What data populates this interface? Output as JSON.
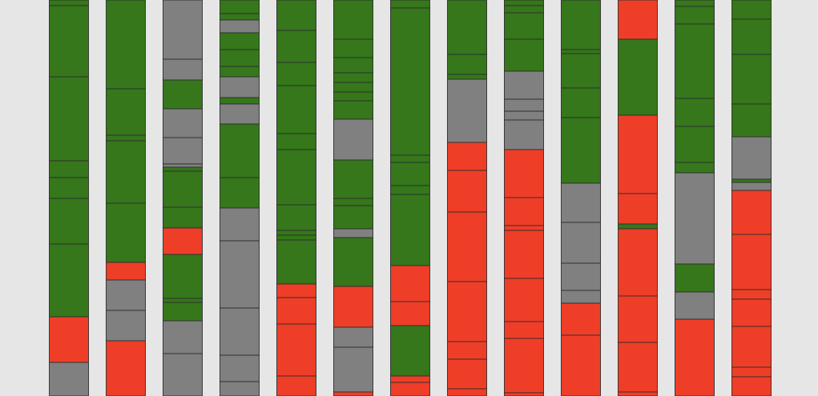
{
  "colors": {
    "background": "#e6e6e6",
    "green": "#35771a",
    "gray": "#808080",
    "red": "#ef3e28",
    "segment_border": "#2d2d2d"
  },
  "chart_data": {
    "type": "bar",
    "orientation": "vertical",
    "stacked": true,
    "axes_visible": false,
    "grid": false,
    "legend": "none",
    "ylim": [
      0,
      495
    ],
    "y_direction": "top-to-bottom",
    "columns": [
      {
        "segments": [
          {
            "start": 0,
            "end": 7,
            "color": "green"
          },
          {
            "start": 7,
            "end": 96,
            "color": "green"
          },
          {
            "start": 96,
            "end": 201,
            "color": "green"
          },
          {
            "start": 201,
            "end": 222,
            "color": "green"
          },
          {
            "start": 222,
            "end": 248,
            "color": "green"
          },
          {
            "start": 248,
            "end": 305,
            "color": "green"
          },
          {
            "start": 305,
            "end": 396,
            "color": "green"
          },
          {
            "start": 396,
            "end": 453,
            "color": "red"
          },
          {
            "start": 453,
            "end": 495,
            "color": "gray"
          }
        ]
      },
      {
        "segments": [
          {
            "start": 0,
            "end": 111,
            "color": "green"
          },
          {
            "start": 111,
            "end": 169,
            "color": "green"
          },
          {
            "start": 169,
            "end": 176,
            "color": "green"
          },
          {
            "start": 176,
            "end": 254,
            "color": "green"
          },
          {
            "start": 254,
            "end": 328,
            "color": "green"
          },
          {
            "start": 328,
            "end": 350,
            "color": "red"
          },
          {
            "start": 350,
            "end": 388,
            "color": "gray"
          },
          {
            "start": 388,
            "end": 426,
            "color": "gray"
          },
          {
            "start": 426,
            "end": 495,
            "color": "red"
          }
        ]
      },
      {
        "segments": [
          {
            "start": 0,
            "end": 74,
            "color": "gray"
          },
          {
            "start": 74,
            "end": 100,
            "color": "gray"
          },
          {
            "start": 100,
            "end": 136,
            "color": "green"
          },
          {
            "start": 136,
            "end": 172,
            "color": "gray"
          },
          {
            "start": 172,
            "end": 205,
            "color": "gray"
          },
          {
            "start": 205,
            "end": 209,
            "color": "gray"
          },
          {
            "start": 209,
            "end": 214,
            "color": "green"
          },
          {
            "start": 214,
            "end": 259,
            "color": "green"
          },
          {
            "start": 259,
            "end": 285,
            "color": "green"
          },
          {
            "start": 285,
            "end": 318,
            "color": "red"
          },
          {
            "start": 318,
            "end": 373,
            "color": "green"
          },
          {
            "start": 373,
            "end": 378,
            "color": "green"
          },
          {
            "start": 378,
            "end": 401,
            "color": "green"
          },
          {
            "start": 401,
            "end": 442,
            "color": "gray"
          },
          {
            "start": 442,
            "end": 495,
            "color": "gray"
          }
        ]
      },
      {
        "segments": [
          {
            "start": 0,
            "end": 17,
            "color": "green"
          },
          {
            "start": 17,
            "end": 25,
            "color": "green"
          },
          {
            "start": 25,
            "end": 41,
            "color": "gray"
          },
          {
            "start": 41,
            "end": 62,
            "color": "green"
          },
          {
            "start": 62,
            "end": 83,
            "color": "green"
          },
          {
            "start": 83,
            "end": 96,
            "color": "green"
          },
          {
            "start": 96,
            "end": 122,
            "color": "gray"
          },
          {
            "start": 122,
            "end": 130,
            "color": "green"
          },
          {
            "start": 130,
            "end": 155,
            "color": "gray"
          },
          {
            "start": 155,
            "end": 222,
            "color": "green"
          },
          {
            "start": 222,
            "end": 260,
            "color": "green"
          },
          {
            "start": 260,
            "end": 301,
            "color": "gray"
          },
          {
            "start": 301,
            "end": 385,
            "color": "gray"
          },
          {
            "start": 385,
            "end": 444,
            "color": "gray"
          },
          {
            "start": 444,
            "end": 477,
            "color": "gray"
          },
          {
            "start": 477,
            "end": 495,
            "color": "gray"
          }
        ]
      },
      {
        "segments": [
          {
            "start": 0,
            "end": 38,
            "color": "green"
          },
          {
            "start": 38,
            "end": 78,
            "color": "green"
          },
          {
            "start": 78,
            "end": 107,
            "color": "green"
          },
          {
            "start": 107,
            "end": 167,
            "color": "green"
          },
          {
            "start": 167,
            "end": 187,
            "color": "green"
          },
          {
            "start": 187,
            "end": 256,
            "color": "green"
          },
          {
            "start": 256,
            "end": 288,
            "color": "green"
          },
          {
            "start": 288,
            "end": 294,
            "color": "green"
          },
          {
            "start": 294,
            "end": 300,
            "color": "green"
          },
          {
            "start": 300,
            "end": 355,
            "color": "green"
          },
          {
            "start": 355,
            "end": 372,
            "color": "red"
          },
          {
            "start": 372,
            "end": 405,
            "color": "red"
          },
          {
            "start": 405,
            "end": 470,
            "color": "red"
          },
          {
            "start": 470,
            "end": 495,
            "color": "red"
          }
        ]
      },
      {
        "segments": [
          {
            "start": 0,
            "end": 49,
            "color": "green"
          },
          {
            "start": 49,
            "end": 72,
            "color": "green"
          },
          {
            "start": 72,
            "end": 91,
            "color": "green"
          },
          {
            "start": 91,
            "end": 103,
            "color": "green"
          },
          {
            "start": 103,
            "end": 115,
            "color": "green"
          },
          {
            "start": 115,
            "end": 126,
            "color": "green"
          },
          {
            "start": 126,
            "end": 149,
            "color": "green"
          },
          {
            "start": 149,
            "end": 200,
            "color": "gray"
          },
          {
            "start": 200,
            "end": 248,
            "color": "green"
          },
          {
            "start": 248,
            "end": 257,
            "color": "green"
          },
          {
            "start": 257,
            "end": 286,
            "color": "green"
          },
          {
            "start": 286,
            "end": 297,
            "color": "gray"
          },
          {
            "start": 297,
            "end": 358,
            "color": "green"
          },
          {
            "start": 358,
            "end": 409,
            "color": "red"
          },
          {
            "start": 409,
            "end": 434,
            "color": "gray"
          },
          {
            "start": 434,
            "end": 490,
            "color": "gray"
          },
          {
            "start": 490,
            "end": 495,
            "color": "red"
          }
        ]
      },
      {
        "segments": [
          {
            "start": 0,
            "end": 10,
            "color": "green"
          },
          {
            "start": 10,
            "end": 194,
            "color": "green"
          },
          {
            "start": 194,
            "end": 203,
            "color": "green"
          },
          {
            "start": 203,
            "end": 232,
            "color": "green"
          },
          {
            "start": 232,
            "end": 243,
            "color": "green"
          },
          {
            "start": 243,
            "end": 332,
            "color": "green"
          },
          {
            "start": 332,
            "end": 377,
            "color": "red"
          },
          {
            "start": 377,
            "end": 407,
            "color": "red"
          },
          {
            "start": 407,
            "end": 470,
            "color": "green"
          },
          {
            "start": 470,
            "end": 478,
            "color": "red"
          },
          {
            "start": 478,
            "end": 495,
            "color": "red"
          }
        ]
      },
      {
        "segments": [
          {
            "start": 0,
            "end": 68,
            "color": "green"
          },
          {
            "start": 68,
            "end": 93,
            "color": "green"
          },
          {
            "start": 93,
            "end": 99,
            "color": "green"
          },
          {
            "start": 99,
            "end": 178,
            "color": "gray"
          },
          {
            "start": 178,
            "end": 213,
            "color": "red"
          },
          {
            "start": 213,
            "end": 265,
            "color": "red"
          },
          {
            "start": 265,
            "end": 352,
            "color": "red"
          },
          {
            "start": 352,
            "end": 427,
            "color": "red"
          },
          {
            "start": 427,
            "end": 449,
            "color": "red"
          },
          {
            "start": 449,
            "end": 486,
            "color": "red"
          },
          {
            "start": 486,
            "end": 495,
            "color": "red"
          }
        ]
      },
      {
        "segments": [
          {
            "start": 0,
            "end": 7,
            "color": "green"
          },
          {
            "start": 7,
            "end": 16,
            "color": "green"
          },
          {
            "start": 16,
            "end": 49,
            "color": "green"
          },
          {
            "start": 49,
            "end": 89,
            "color": "green"
          },
          {
            "start": 89,
            "end": 124,
            "color": "gray"
          },
          {
            "start": 124,
            "end": 139,
            "color": "gray"
          },
          {
            "start": 139,
            "end": 150,
            "color": "gray"
          },
          {
            "start": 150,
            "end": 187,
            "color": "gray"
          },
          {
            "start": 187,
            "end": 247,
            "color": "red"
          },
          {
            "start": 247,
            "end": 282,
            "color": "red"
          },
          {
            "start": 282,
            "end": 288,
            "color": "red"
          },
          {
            "start": 288,
            "end": 348,
            "color": "red"
          },
          {
            "start": 348,
            "end": 402,
            "color": "red"
          },
          {
            "start": 402,
            "end": 423,
            "color": "red"
          },
          {
            "start": 423,
            "end": 491,
            "color": "red"
          },
          {
            "start": 491,
            "end": 495,
            "color": "red"
          }
        ]
      },
      {
        "segments": [
          {
            "start": 0,
            "end": 62,
            "color": "green"
          },
          {
            "start": 62,
            "end": 67,
            "color": "green"
          },
          {
            "start": 67,
            "end": 110,
            "color": "green"
          },
          {
            "start": 110,
            "end": 147,
            "color": "green"
          },
          {
            "start": 147,
            "end": 229,
            "color": "green"
          },
          {
            "start": 229,
            "end": 278,
            "color": "gray"
          },
          {
            "start": 278,
            "end": 329,
            "color": "gray"
          },
          {
            "start": 329,
            "end": 363,
            "color": "gray"
          },
          {
            "start": 363,
            "end": 379,
            "color": "gray"
          },
          {
            "start": 379,
            "end": 419,
            "color": "red"
          },
          {
            "start": 419,
            "end": 495,
            "color": "red"
          }
        ]
      },
      {
        "segments": [
          {
            "start": 0,
            "end": 49,
            "color": "red"
          },
          {
            "start": 49,
            "end": 144,
            "color": "green"
          },
          {
            "start": 144,
            "end": 242,
            "color": "red"
          },
          {
            "start": 242,
            "end": 280,
            "color": "red"
          },
          {
            "start": 280,
            "end": 286,
            "color": "green"
          },
          {
            "start": 286,
            "end": 370,
            "color": "red"
          },
          {
            "start": 370,
            "end": 428,
            "color": "red"
          },
          {
            "start": 428,
            "end": 490,
            "color": "red"
          },
          {
            "start": 490,
            "end": 495,
            "color": "red"
          }
        ]
      },
      {
        "segments": [
          {
            "start": 0,
            "end": 8,
            "color": "green"
          },
          {
            "start": 8,
            "end": 30,
            "color": "green"
          },
          {
            "start": 30,
            "end": 123,
            "color": "green"
          },
          {
            "start": 123,
            "end": 158,
            "color": "green"
          },
          {
            "start": 158,
            "end": 203,
            "color": "green"
          },
          {
            "start": 203,
            "end": 216,
            "color": "green"
          },
          {
            "start": 216,
            "end": 330,
            "color": "gray"
          },
          {
            "start": 330,
            "end": 365,
            "color": "green"
          },
          {
            "start": 365,
            "end": 399,
            "color": "gray"
          },
          {
            "start": 399,
            "end": 495,
            "color": "red"
          }
        ]
      },
      {
        "segments": [
          {
            "start": 0,
            "end": 24,
            "color": "green"
          },
          {
            "start": 24,
            "end": 68,
            "color": "green"
          },
          {
            "start": 68,
            "end": 130,
            "color": "green"
          },
          {
            "start": 130,
            "end": 171,
            "color": "green"
          },
          {
            "start": 171,
            "end": 224,
            "color": "gray"
          },
          {
            "start": 224,
            "end": 228,
            "color": "green"
          },
          {
            "start": 228,
            "end": 238,
            "color": "gray"
          },
          {
            "start": 238,
            "end": 293,
            "color": "red"
          },
          {
            "start": 293,
            "end": 362,
            "color": "red"
          },
          {
            "start": 362,
            "end": 374,
            "color": "red"
          },
          {
            "start": 374,
            "end": 408,
            "color": "red"
          },
          {
            "start": 408,
            "end": 459,
            "color": "red"
          },
          {
            "start": 459,
            "end": 471,
            "color": "red"
          },
          {
            "start": 471,
            "end": 495,
            "color": "red"
          }
        ]
      }
    ]
  }
}
